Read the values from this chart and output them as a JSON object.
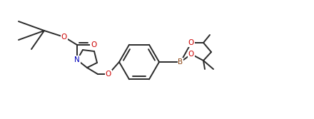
{
  "bg_color": "#ffffff",
  "line_color": "#2a2a2a",
  "atom_colors": {
    "O": "#cc0000",
    "N": "#0000bb",
    "B": "#8B4513"
  },
  "figsize": [
    4.4,
    1.67
  ],
  "dpi": 100
}
